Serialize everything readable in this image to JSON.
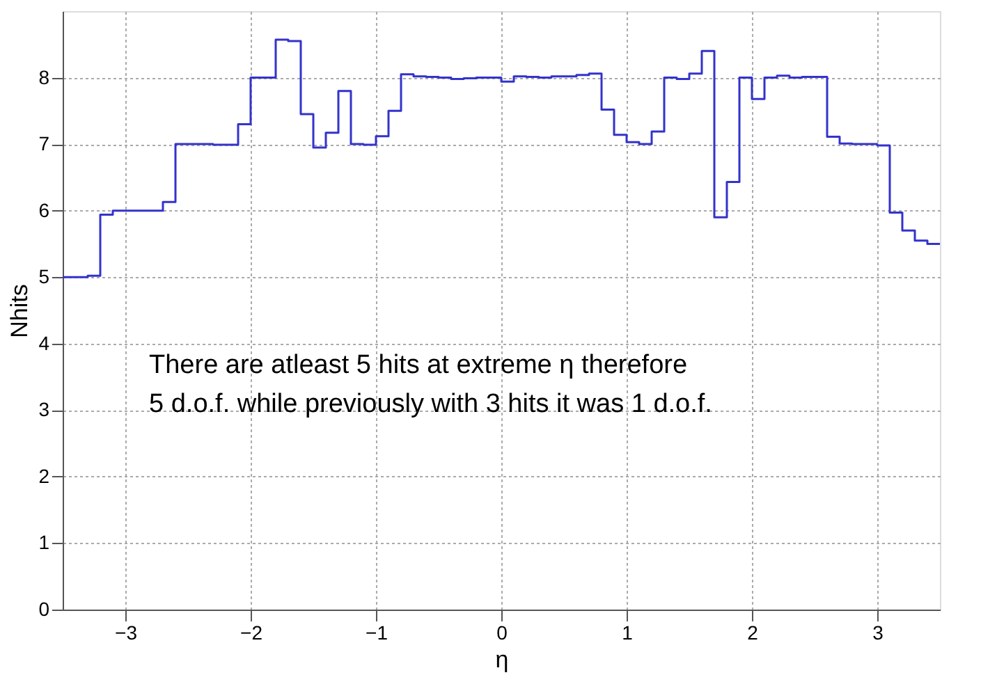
{
  "chart_data": {
    "type": "histogram",
    "xlabel": "η",
    "ylabel": "Nhits",
    "bins": [
      -3.5,
      -3.4,
      -3.3,
      -3.2,
      -3.1,
      -3.0,
      -2.9,
      -2.8,
      -2.7,
      -2.6,
      -2.5,
      -2.4,
      -2.3,
      -2.2,
      -2.1,
      -2.0,
      -1.9,
      -1.8,
      -1.7,
      -1.6,
      -1.5,
      -1.4,
      -1.3,
      -1.2,
      -1.1,
      -1.0,
      -0.9,
      -0.8,
      -0.7,
      -0.6,
      -0.5,
      -0.4,
      -0.3,
      -0.2,
      -0.1,
      0.0,
      0.1,
      0.2,
      0.3,
      0.4,
      0.5,
      0.6,
      0.7,
      0.8,
      0.9,
      1.0,
      1.1,
      1.2,
      1.3,
      1.4,
      1.5,
      1.6,
      1.7,
      1.8,
      1.9,
      2.0,
      2.1,
      2.2,
      2.3,
      2.4,
      2.5,
      2.6,
      2.7,
      2.8,
      2.9,
      3.0,
      3.1,
      3.2,
      3.3,
      3.4,
      3.5
    ],
    "values": [
      5.0,
      5.0,
      5.02,
      5.94,
      6.0,
      6.0,
      6.0,
      6.0,
      6.13,
      7.0,
      7.0,
      7.0,
      6.99,
      6.99,
      7.3,
      8.0,
      8.0,
      8.57,
      8.55,
      7.45,
      6.95,
      7.17,
      7.8,
      7.0,
      6.99,
      7.12,
      7.5,
      8.05,
      8.02,
      8.01,
      8.0,
      7.98,
      7.99,
      8.0,
      8.0,
      7.94,
      8.02,
      8.01,
      8.0,
      8.02,
      8.02,
      8.04,
      8.06,
      7.52,
      7.14,
      7.03,
      7.0,
      7.19,
      8.0,
      7.98,
      8.06,
      8.4,
      5.9,
      6.43,
      8.0,
      7.68,
      8.0,
      8.03,
      8.0,
      8.01,
      8.01,
      7.11,
      7.01,
      7.0,
      7.0,
      6.98,
      5.97,
      5.7,
      5.55,
      5.5
    ],
    "color": "#3333cc",
    "xlim": [
      -3.5,
      3.5
    ],
    "xticks": [
      -3,
      -2,
      -1,
      0,
      1,
      2,
      3
    ],
    "ylim": [
      0,
      9
    ],
    "yticks": [
      0,
      1,
      2,
      3,
      4,
      5,
      6,
      7,
      8
    ],
    "grid": true,
    "annotations": [
      "There are atleast 5 hits at extreme η therefore\n5 d.o.f. while previously with 3 hits it was 1 d.o.f."
    ]
  }
}
